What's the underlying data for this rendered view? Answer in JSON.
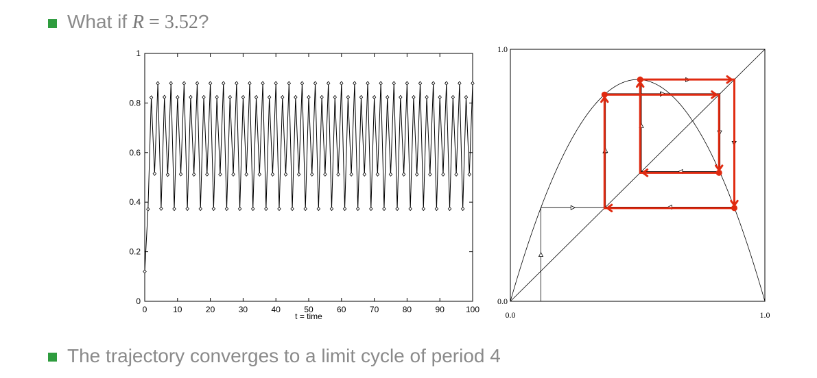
{
  "slide": {
    "question_prefix": "What if ",
    "question_var": "R",
    "question_eq": " = ",
    "question_val": "3.52",
    "question_suffix": "?",
    "conclusion": "The trajectory converges to a limit cycle of period 4",
    "bullet_color": "#2e9c3e"
  },
  "chart_data": [
    {
      "type": "line",
      "title": "",
      "xlabel": "t = time",
      "ylabel": "",
      "xlim": [
        0,
        100
      ],
      "ylim": [
        0,
        1
      ],
      "x_ticks": [
        "0",
        "10",
        "20",
        "30",
        "40",
        "50",
        "60",
        "70",
        "80",
        "90",
        "100"
      ],
      "y_ticks": [
        "0",
        "0.2",
        "0.4",
        "0.6",
        "0.8",
        "1"
      ],
      "r": 3.52,
      "x0": 0.12,
      "n_steps": 100,
      "markers": "open-diamond"
    },
    {
      "type": "line",
      "title": "",
      "xlim": [
        0,
        1
      ],
      "ylim": [
        0,
        1
      ],
      "x_ticks": [
        "0.0",
        "1.0"
      ],
      "y_ticks": [
        "0.0",
        "1.0"
      ],
      "series": [
        {
          "name": "",
          "kind": "map",
          "r": 3.52
        },
        {
          "name": "",
          "kind": "diagonal"
        },
        {
          "name": "",
          "kind": "cobweb",
          "start": 0.12
        }
      ],
      "cycle_points": [
        0.37,
        0.82,
        0.51,
        0.88
      ],
      "cycle_color": "#e02a10"
    }
  ]
}
